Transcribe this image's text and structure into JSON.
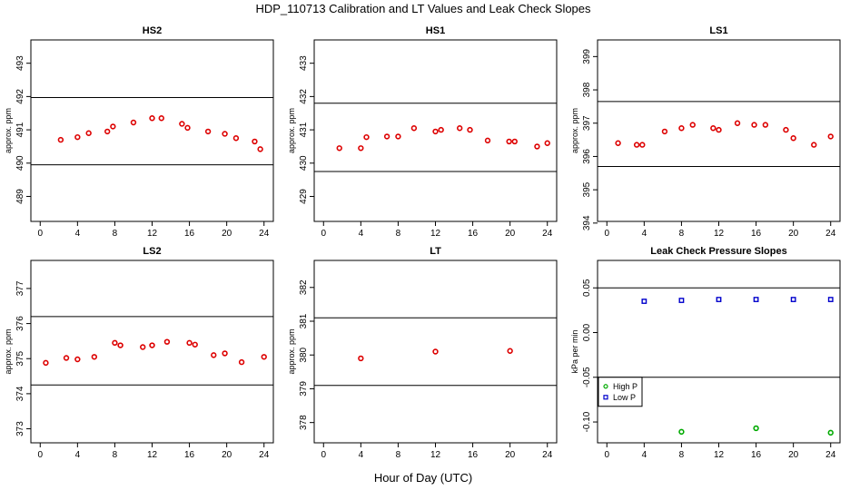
{
  "figure": {
    "title": "HDP_110713  Calibration and LT Values and Leak Check Slopes",
    "xlabel": "Hour of Day (UTC)"
  },
  "chart_data": [
    {
      "type": "scatter",
      "title": "HS2",
      "ylabel": "approx. ppm",
      "xlim": [
        -1,
        25
      ],
      "ylim": [
        488.25,
        493.7
      ],
      "xticks": [
        "0",
        "4",
        "8",
        "12",
        "16",
        "20",
        "24"
      ],
      "xtick_values": [
        0,
        4,
        8,
        12,
        16,
        20,
        24
      ],
      "yticks": [
        "489",
        "490",
        "491",
        "492",
        "493"
      ],
      "ytick_values": [
        489,
        490,
        491,
        492,
        493
      ],
      "hlines": [
        489.95,
        491.97
      ],
      "series": [
        {
          "color": "#dd0000",
          "marker": "circle",
          "x": [
            2.2,
            4.0,
            5.2,
            7.2,
            7.8,
            10.0,
            12.0,
            13.0,
            15.2,
            15.8,
            18.0,
            19.8,
            21.0,
            23.0,
            23.6
          ],
          "y": [
            490.7,
            490.78,
            490.9,
            490.95,
            491.1,
            491.22,
            491.35,
            491.35,
            491.18,
            491.06,
            490.95,
            490.88,
            490.75,
            490.65,
            490.42
          ]
        }
      ]
    },
    {
      "type": "scatter",
      "title": "HS1",
      "ylabel": "approx. ppm",
      "xlim": [
        -1,
        25
      ],
      "ylim": [
        428.25,
        433.7
      ],
      "xticks": [
        "0",
        "4",
        "8",
        "12",
        "16",
        "20",
        "24"
      ],
      "xtick_values": [
        0,
        4,
        8,
        12,
        16,
        20,
        24
      ],
      "yticks": [
        "429",
        "430",
        "431",
        "432",
        "433"
      ],
      "ytick_values": [
        429,
        430,
        431,
        432,
        433
      ],
      "hlines": [
        429.75,
        431.8
      ],
      "series": [
        {
          "color": "#dd0000",
          "marker": "circle",
          "x": [
            1.7,
            4.0,
            4.6,
            6.8,
            8.0,
            9.7,
            12.0,
            12.6,
            14.6,
            15.7,
            17.6,
            19.9,
            20.5,
            22.9,
            24.0
          ],
          "y": [
            430.45,
            430.45,
            430.78,
            430.8,
            430.8,
            431.05,
            430.95,
            431.0,
            431.05,
            431.0,
            430.68,
            430.65,
            430.65,
            430.5,
            430.6
          ]
        }
      ]
    },
    {
      "type": "scatter",
      "title": "LS1",
      "ylabel": "approx. ppm",
      "xlim": [
        -1,
        25
      ],
      "ylim": [
        394.05,
        399.5
      ],
      "xticks": [
        "0",
        "4",
        "8",
        "12",
        "16",
        "20",
        "24"
      ],
      "xtick_values": [
        0,
        4,
        8,
        12,
        16,
        20,
        24
      ],
      "yticks": [
        "394",
        "395",
        "396",
        "397",
        "398",
        "399"
      ],
      "ytick_values": [
        394,
        395,
        396,
        397,
        398,
        399
      ],
      "hlines": [
        395.7,
        397.65
      ],
      "series": [
        {
          "color": "#dd0000",
          "marker": "circle",
          "x": [
            1.2,
            3.2,
            3.8,
            6.2,
            8.0,
            9.2,
            11.4,
            12.0,
            14.0,
            15.8,
            17.0,
            19.2,
            20.0,
            22.2,
            24.0
          ],
          "y": [
            396.4,
            396.35,
            396.35,
            396.75,
            396.85,
            396.95,
            396.85,
            396.8,
            397.0,
            396.95,
            396.95,
            396.8,
            396.55,
            396.35,
            396.6
          ]
        }
      ]
    },
    {
      "type": "scatter",
      "title": "LS2",
      "ylabel": "approx. ppm",
      "xlim": [
        -1,
        25
      ],
      "ylim": [
        372.6,
        377.8
      ],
      "xticks": [
        "0",
        "4",
        "8",
        "12",
        "16",
        "20",
        "24"
      ],
      "xtick_values": [
        0,
        4,
        8,
        12,
        16,
        20,
        24
      ],
      "yticks": [
        "373",
        "374",
        "375",
        "376",
        "377"
      ],
      "ytick_values": [
        373,
        374,
        375,
        376,
        377
      ],
      "hlines": [
        374.25,
        376.2
      ],
      "series": [
        {
          "color": "#dd0000",
          "marker": "circle",
          "x": [
            0.6,
            2.8,
            4.0,
            5.8,
            8.0,
            8.6,
            11.0,
            12.0,
            13.6,
            16.0,
            16.6,
            18.6,
            19.8,
            21.6,
            24.0
          ],
          "y": [
            374.88,
            375.02,
            374.98,
            375.05,
            375.45,
            375.38,
            375.33,
            375.38,
            375.48,
            375.45,
            375.4,
            375.1,
            375.15,
            374.9,
            375.05
          ]
        }
      ]
    },
    {
      "type": "scatter",
      "title": "LT",
      "ylabel": "approx. ppm",
      "xlim": [
        -1,
        25
      ],
      "ylim": [
        377.4,
        382.8
      ],
      "xticks": [
        "0",
        "4",
        "8",
        "12",
        "16",
        "20",
        "24"
      ],
      "xtick_values": [
        0,
        4,
        8,
        12,
        16,
        20,
        24
      ],
      "yticks": [
        "378",
        "379",
        "380",
        "381",
        "382"
      ],
      "ytick_values": [
        378,
        379,
        380,
        381,
        382
      ],
      "hlines": [
        379.1,
        381.1
      ],
      "series": [
        {
          "color": "#dd0000",
          "marker": "circle",
          "x": [
            4.0,
            12.0,
            20.0
          ],
          "y": [
            379.9,
            380.1,
            380.12
          ]
        }
      ]
    },
    {
      "type": "scatter",
      "title": "Leak Check Pressure Slopes",
      "ylabel": "kPa per min",
      "xlim": [
        -1,
        25
      ],
      "ylim": [
        -0.1233,
        0.0807
      ],
      "xticks": [
        "0",
        "4",
        "8",
        "12",
        "16",
        "20",
        "24"
      ],
      "xtick_values": [
        0,
        4,
        8,
        12,
        16,
        20,
        24
      ],
      "yticks": [
        "-0.10",
        "-0.05",
        "0.00",
        "0.05"
      ],
      "ytick_values": [
        -0.1,
        -0.05,
        0.0,
        0.05
      ],
      "hlines": [
        0.05,
        -0.05
      ],
      "legend": {
        "position": "bottom-left"
      },
      "series": [
        {
          "name": "High P",
          "color": "#00aa00",
          "marker": "circle",
          "x": [
            8.0,
            16.0,
            24.0
          ],
          "y": [
            -0.111,
            -0.107,
            -0.112
          ]
        },
        {
          "name": "Low P",
          "color": "#0000cc",
          "marker": "square",
          "x": [
            4.0,
            8.0,
            12.0,
            16.0,
            20.0,
            24.0
          ],
          "y": [
            0.035,
            0.036,
            0.037,
            0.037,
            0.037,
            0.037
          ]
        }
      ]
    }
  ]
}
